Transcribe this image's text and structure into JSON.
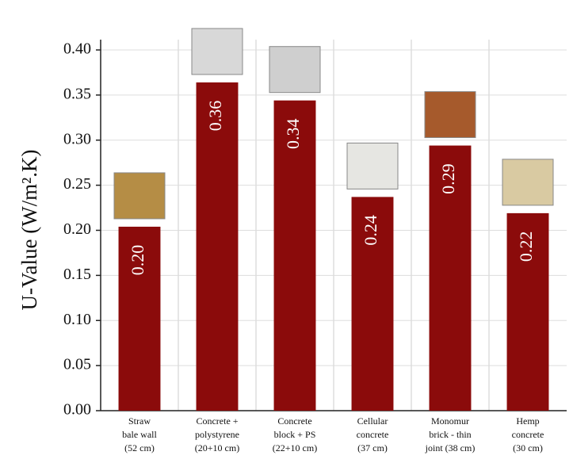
{
  "chart_data": {
    "type": "bar",
    "y_label": "U-Value (W/m².K)",
    "categories": [
      [
        "Straw",
        "bale wall",
        "(52 cm)"
      ],
      [
        "Concrete +",
        "polystyrene",
        "(20+10 cm)"
      ],
      [
        "Concrete",
        "block + PS",
        "(22+10 cm)"
      ],
      [
        "Cellular",
        "concrete",
        "(37 cm)"
      ],
      [
        "Monomur",
        "brick - thin",
        "joint (38 cm)"
      ],
      [
        "Hemp",
        "concrete",
        "(30 cm)"
      ]
    ],
    "values": [
      0.204,
      0.364,
      0.344,
      0.237,
      0.294,
      0.219
    ],
    "value_labels": [
      "0.20",
      "0.36",
      "0.34",
      "0.24",
      "0.29",
      "0.22"
    ],
    "color": "#8b0b0b",
    "ylim": [
      0,
      0.4
    ],
    "yticks": [
      {
        "value": 0,
        "label": "0.00"
      },
      {
        "value": 0.05,
        "label": "0.05"
      },
      {
        "value": 0.1,
        "label": "0.10"
      },
      {
        "value": 0.15,
        "label": "0.15"
      },
      {
        "value": 0.2,
        "label": "0.20"
      },
      {
        "value": 0.25,
        "label": "0.25"
      },
      {
        "value": 0.3,
        "label": "0.30"
      },
      {
        "value": 0.35,
        "label": "0.35"
      },
      {
        "value": 0.4,
        "label": "0.40"
      }
    ],
    "grid": true
  }
}
